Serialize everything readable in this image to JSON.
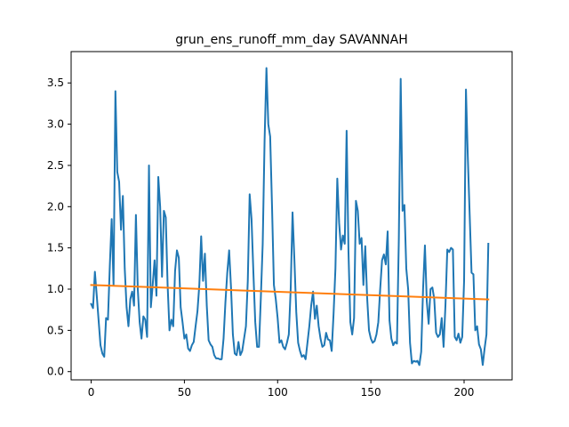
{
  "chart_data": {
    "type": "line",
    "title": "grun_ens_runoff_mm_day SAVANNAH",
    "xlabel": "",
    "ylabel": "",
    "xlim": [
      -10.75,
      225.75
    ],
    "ylim": [
      -0.1,
      3.88
    ],
    "x_ticks": [
      0,
      50,
      100,
      150,
      200
    ],
    "y_ticks": [
      0.0,
      0.5,
      1.0,
      1.5,
      2.0,
      2.5,
      3.0,
      3.5
    ],
    "x_tick_labels": [
      "0",
      "50",
      "100",
      "150",
      "200"
    ],
    "y_tick_labels": [
      "0.0",
      "0.5",
      "1.0",
      "1.5",
      "2.0",
      "2.5",
      "3.0",
      "3.5"
    ],
    "grid": false,
    "legend": "none",
    "series": [
      {
        "color": "#1f77b4",
        "values": [
          0.82,
          0.77,
          1.21,
          0.92,
          0.62,
          0.32,
          0.22,
          0.18,
          0.65,
          0.63,
          1.28,
          1.85,
          1.05,
          3.4,
          2.42,
          2.3,
          1.72,
          2.13,
          1.25,
          0.78,
          0.55,
          0.88,
          0.97,
          0.8,
          1.9,
          1.0,
          0.6,
          0.4,
          0.67,
          0.63,
          0.42,
          2.5,
          0.78,
          1.05,
          1.35,
          0.92,
          2.36,
          2.0,
          1.15,
          1.95,
          1.87,
          1.05,
          0.5,
          0.63,
          0.55,
          1.22,
          1.47,
          1.38,
          0.78,
          0.6,
          0.4,
          0.45,
          0.28,
          0.25,
          0.32,
          0.36,
          0.55,
          0.73,
          1.05,
          1.64,
          1.1,
          1.43,
          0.8,
          0.38,
          0.33,
          0.3,
          0.2,
          0.16,
          0.16,
          0.15,
          0.15,
          0.4,
          0.84,
          1.2,
          1.47,
          1.02,
          0.45,
          0.22,
          0.2,
          0.36,
          0.2,
          0.25,
          0.4,
          0.55,
          1.1,
          2.15,
          1.85,
          1.2,
          0.6,
          0.3,
          0.3,
          0.9,
          1.55,
          2.8,
          3.68,
          3.0,
          2.85,
          2.0,
          1.05,
          0.88,
          0.65,
          0.35,
          0.38,
          0.3,
          0.27,
          0.35,
          0.45,
          1.0,
          1.93,
          1.35,
          0.72,
          0.35,
          0.25,
          0.18,
          0.2,
          0.15,
          0.35,
          0.55,
          0.8,
          0.97,
          0.64,
          0.8,
          0.55,
          0.4,
          0.3,
          0.32,
          0.47,
          0.39,
          0.38,
          0.25,
          0.7,
          1.25,
          2.34,
          1.8,
          1.48,
          1.65,
          1.55,
          2.92,
          1.45,
          0.6,
          0.45,
          0.65,
          2.07,
          1.95,
          1.55,
          1.62,
          1.05,
          1.52,
          0.9,
          0.5,
          0.4,
          0.35,
          0.37,
          0.45,
          0.6,
          1.0,
          1.35,
          1.42,
          1.3,
          1.7,
          0.62,
          0.4,
          0.32,
          0.36,
          0.34,
          1.6,
          3.55,
          1.95,
          2.02,
          1.25,
          1.0,
          0.35,
          0.1,
          0.13,
          0.12,
          0.13,
          0.08,
          0.24,
          1.0,
          1.53,
          0.85,
          0.58,
          1.0,
          1.02,
          0.88,
          0.47,
          0.42,
          0.45,
          0.65,
          0.3,
          0.8,
          1.48,
          1.45,
          1.5,
          1.48,
          0.42,
          0.38,
          0.46,
          0.35,
          0.42,
          1.1,
          3.42,
          2.6,
          1.9,
          1.2,
          1.18,
          0.5,
          0.55,
          0.33,
          0.27,
          0.08,
          0.28,
          0.45,
          1.55
        ]
      },
      {
        "color": "#ff7f0e",
        "trend_start": 1.05,
        "trend_end": 0.875
      }
    ]
  }
}
